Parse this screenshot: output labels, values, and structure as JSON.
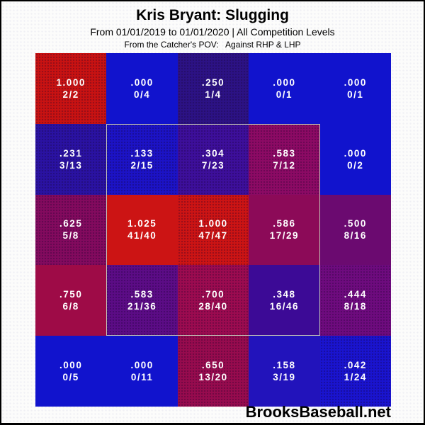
{
  "header": {
    "title": "Kris Bryant: Slugging",
    "subtitle": "From 01/01/2019 to 01/01/2020 | All Competition Levels",
    "pov_line": "From the Catcher's POV:   Against RHP & LHP"
  },
  "footer": {
    "brand": "BrooksBaseball.net"
  },
  "colors": {
    "page_background": "#fcfcfb",
    "frame_border": "#000000",
    "strike_zone_outline": "#c3c3b6",
    "cell_text": "#ffffff",
    "hot_red": "#cc1414",
    "cold_blue": "#1113cd"
  },
  "chart_data": {
    "type": "heatmap",
    "title": "Kris Bryant: Slugging",
    "subtitle": "From 01/01/2019 to 01/01/2020 | All Competition Levels",
    "annotation": "From the Catcher's POV:   Against RHP & LHP",
    "rows": 5,
    "cols": 5,
    "value_metric": "slugging",
    "label_format": "value over hits/at-bats",
    "strike_zone": {
      "col_start": 2,
      "col_end": 4,
      "row_start": 2,
      "row_end": 4
    },
    "cells": [
      {
        "row": 1,
        "col": 1,
        "value": "1.000",
        "ratio": "2/2",
        "slg": 1.0,
        "fill": "#c81212",
        "dotted": true
      },
      {
        "row": 1,
        "col": 2,
        "value": ".000",
        "ratio": "0/4",
        "slg": 0.0,
        "fill": "#1113cd",
        "dotted": false
      },
      {
        "row": 1,
        "col": 3,
        "value": ".250",
        "ratio": "1/4",
        "slg": 0.25,
        "fill": "#2c1285",
        "dotted": true
      },
      {
        "row": 1,
        "col": 4,
        "value": ".000",
        "ratio": "0/1",
        "slg": 0.0,
        "fill": "#1113cd",
        "dotted": false
      },
      {
        "row": 1,
        "col": 5,
        "value": ".000",
        "ratio": "0/1",
        "slg": 0.0,
        "fill": "#1113cd",
        "dotted": false
      },
      {
        "row": 2,
        "col": 1,
        "value": ".231",
        "ratio": "3/13",
        "slg": 0.231,
        "fill": "#2a12a2",
        "dotted": true
      },
      {
        "row": 2,
        "col": 2,
        "value": ".133",
        "ratio": "2/15",
        "slg": 0.133,
        "fill": "#1c13c6",
        "dotted": true
      },
      {
        "row": 2,
        "col": 3,
        "value": ".304",
        "ratio": "7/23",
        "slg": 0.304,
        "fill": "#3d0f9b",
        "dotted": true
      },
      {
        "row": 2,
        "col": 4,
        "value": ".583",
        "ratio": "7/12",
        "slg": 0.583,
        "fill": "#8c0a64",
        "dotted": true
      },
      {
        "row": 2,
        "col": 5,
        "value": ".000",
        "ratio": "0/2",
        "slg": 0.0,
        "fill": "#1113cd",
        "dotted": false
      },
      {
        "row": 3,
        "col": 1,
        "value": ".625",
        "ratio": "5/8",
        "slg": 0.625,
        "fill": "#830a5e",
        "dotted": true
      },
      {
        "row": 3,
        "col": 2,
        "value": "1.025",
        "ratio": "41/40",
        "slg": 1.025,
        "fill": "#cc1414",
        "dotted": false
      },
      {
        "row": 3,
        "col": 3,
        "value": "1.000",
        "ratio": "47/47",
        "slg": 1.0,
        "fill": "#cc1414",
        "dotted": true
      },
      {
        "row": 3,
        "col": 4,
        "value": ".586",
        "ratio": "17/29",
        "slg": 0.586,
        "fill": "#8c0a58",
        "dotted": false
      },
      {
        "row": 3,
        "col": 5,
        "value": ".500",
        "ratio": "8/16",
        "slg": 0.5,
        "fill": "#6b0a70",
        "dotted": false
      },
      {
        "row": 4,
        "col": 1,
        "value": ".750",
        "ratio": "6/8",
        "slg": 0.75,
        "fill": "#9e0b47",
        "dotted": false
      },
      {
        "row": 4,
        "col": 2,
        "value": ".583",
        "ratio": "21/36",
        "slg": 0.583,
        "fill": "#5c0c86",
        "dotted": true
      },
      {
        "row": 4,
        "col": 3,
        "value": ".700",
        "ratio": "28/40",
        "slg": 0.7,
        "fill": "#9c0b50",
        "dotted": true
      },
      {
        "row": 4,
        "col": 4,
        "value": ".348",
        "ratio": "16/46",
        "slg": 0.348,
        "fill": "#3c0a96",
        "dotted": false
      },
      {
        "row": 4,
        "col": 5,
        "value": ".444",
        "ratio": "8/18",
        "slg": 0.444,
        "fill": "#6e0b7e",
        "dotted": true
      },
      {
        "row": 5,
        "col": 1,
        "value": ".000",
        "ratio": "0/5",
        "slg": 0.0,
        "fill": "#1113cd",
        "dotted": false
      },
      {
        "row": 5,
        "col": 2,
        "value": ".000",
        "ratio": "0/11",
        "slg": 0.0,
        "fill": "#1113cd",
        "dotted": false
      },
      {
        "row": 5,
        "col": 3,
        "value": ".650",
        "ratio": "13/20",
        "slg": 0.65,
        "fill": "#970b4e",
        "dotted": true
      },
      {
        "row": 5,
        "col": 4,
        "value": ".158",
        "ratio": "3/19",
        "slg": 0.158,
        "fill": "#2213bb",
        "dotted": false
      },
      {
        "row": 5,
        "col": 5,
        "value": ".042",
        "ratio": "1/24",
        "slg": 0.042,
        "fill": "#1a14cf",
        "dotted": true
      }
    ]
  }
}
